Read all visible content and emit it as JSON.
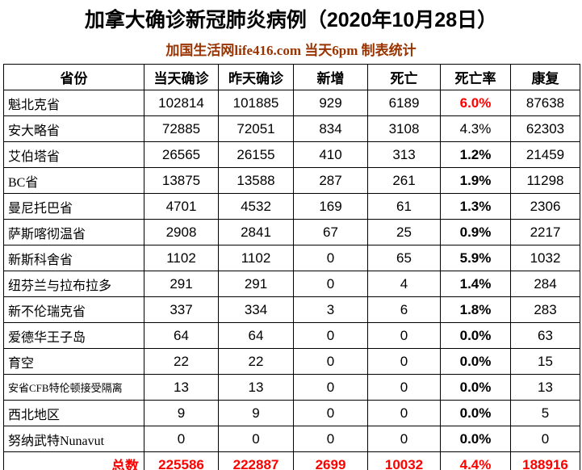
{
  "title": "加拿大确诊新冠肺炎病例（2020年10月28日）",
  "subtitle": "加国生活网life416.com 当天6pm 制表统计",
  "colors": {
    "accent_red": "#FF0000",
    "subtitle_brown": "#993300",
    "border_black": "#000000",
    "background": "#FFFFFF"
  },
  "table": {
    "headers": [
      "省份",
      "当天确诊",
      "昨天确诊",
      "新增",
      "死亡",
      "死亡率",
      "康复"
    ],
    "rows": [
      {
        "province": "魁北克省",
        "today": "102814",
        "yesterday": "101885",
        "new": "929",
        "deaths": "6189",
        "death_rate": "6.0%",
        "recovered": "87638",
        "rate_style": "red-bold",
        "small_label": false
      },
      {
        "province": "安大略省",
        "today": "72885",
        "yesterday": "72051",
        "new": "834",
        "deaths": "3108",
        "death_rate": "4.3%",
        "recovered": "62303",
        "rate_style": "normal",
        "small_label": false
      },
      {
        "province": "艾伯塔省",
        "today": "26565",
        "yesterday": "26155",
        "new": "410",
        "deaths": "313",
        "death_rate": "1.2%",
        "recovered": "21459",
        "rate_style": "bold",
        "small_label": false
      },
      {
        "province": "BC省",
        "today": "13875",
        "yesterday": "13588",
        "new": "287",
        "deaths": "261",
        "death_rate": "1.9%",
        "recovered": "11298",
        "rate_style": "bold",
        "small_label": false
      },
      {
        "province": "曼尼托巴省",
        "today": "4701",
        "yesterday": "4532",
        "new": "169",
        "deaths": "61",
        "death_rate": "1.3%",
        "recovered": "2306",
        "rate_style": "bold",
        "small_label": false
      },
      {
        "province": "萨斯喀彻温省",
        "today": "2908",
        "yesterday": "2841",
        "new": "67",
        "deaths": "25",
        "death_rate": "0.9%",
        "recovered": "2217",
        "rate_style": "bold",
        "small_label": false
      },
      {
        "province": "新斯科舍省",
        "today": "1102",
        "yesterday": "1102",
        "new": "0",
        "deaths": "65",
        "death_rate": "5.9%",
        "recovered": "1032",
        "rate_style": "bold",
        "small_label": false
      },
      {
        "province": "纽芬兰与拉布拉多",
        "today": "291",
        "yesterday": "291",
        "new": "0",
        "deaths": "4",
        "death_rate": "1.4%",
        "recovered": "284",
        "rate_style": "bold",
        "small_label": false
      },
      {
        "province": "新不伦瑞克省",
        "today": "337",
        "yesterday": "334",
        "new": "3",
        "deaths": "6",
        "death_rate": "1.8%",
        "recovered": "283",
        "rate_style": "bold",
        "small_label": false
      },
      {
        "province": "爱德华王子岛",
        "today": "64",
        "yesterday": "64",
        "new": "0",
        "deaths": "0",
        "death_rate": "0.0%",
        "recovered": "63",
        "rate_style": "bold",
        "small_label": false
      },
      {
        "province": "育空",
        "today": "22",
        "yesterday": "22",
        "new": "0",
        "deaths": "0",
        "death_rate": "0.0%",
        "recovered": "15",
        "rate_style": "bold",
        "small_label": false
      },
      {
        "province": "安省CFB特伦顿接受隔离",
        "today": "13",
        "yesterday": "13",
        "new": "0",
        "deaths": "0",
        "death_rate": "0.0%",
        "recovered": "13",
        "rate_style": "bold",
        "small_label": true
      },
      {
        "province": "西北地区",
        "today": "9",
        "yesterday": "9",
        "new": "0",
        "deaths": "0",
        "death_rate": "0.0%",
        "recovered": "5",
        "rate_style": "bold",
        "small_label": false
      },
      {
        "province": "努纳武特Nunavut",
        "today": "0",
        "yesterday": "0",
        "new": "0",
        "deaths": "0",
        "death_rate": "0.0%",
        "recovered": "0",
        "rate_style": "bold",
        "small_label": false
      }
    ],
    "total": {
      "label": "总数",
      "today": "225586",
      "yesterday": "222887",
      "new": "2699",
      "deaths": "10032",
      "death_rate": "4.4%",
      "recovered": "188916"
    }
  },
  "chart_data": {
    "type": "table",
    "title": "加拿大确诊新冠肺炎病例（2020年10月28日）",
    "subtitle": "加国生活网life416.com 当天6pm 制表统计",
    "columns": [
      "省份",
      "当天确诊",
      "昨天确诊",
      "新增",
      "死亡",
      "死亡率",
      "康复"
    ],
    "rows": [
      [
        "魁北克省",
        102814,
        101885,
        929,
        6189,
        "6.0%",
        87638
      ],
      [
        "安大略省",
        72885,
        72051,
        834,
        3108,
        "4.3%",
        62303
      ],
      [
        "艾伯塔省",
        26565,
        26155,
        410,
        313,
        "1.2%",
        21459
      ],
      [
        "BC省",
        13875,
        13588,
        287,
        261,
        "1.9%",
        11298
      ],
      [
        "曼尼托巴省",
        4701,
        4532,
        169,
        61,
        "1.3%",
        2306
      ],
      [
        "萨斯喀彻温省",
        2908,
        2841,
        67,
        25,
        "0.9%",
        2217
      ],
      [
        "新斯科舍省",
        1102,
        1102,
        0,
        65,
        "5.9%",
        1032
      ],
      [
        "纽芬兰与拉布拉多",
        291,
        291,
        0,
        4,
        "1.4%",
        284
      ],
      [
        "新不伦瑞克省",
        337,
        334,
        3,
        6,
        "1.8%",
        283
      ],
      [
        "爱德华王子岛",
        64,
        64,
        0,
        0,
        "0.0%",
        63
      ],
      [
        "育空",
        22,
        22,
        0,
        0,
        "0.0%",
        15
      ],
      [
        "安省CFB特伦顿接受隔离",
        13,
        13,
        0,
        0,
        "0.0%",
        13
      ],
      [
        "西北地区",
        9,
        9,
        0,
        0,
        "0.0%",
        5
      ],
      [
        "努纳武特Nunavut",
        0,
        0,
        0,
        0,
        "0.0%",
        0
      ],
      [
        "总数",
        225586,
        222887,
        2699,
        10032,
        "4.4%",
        188916
      ]
    ]
  }
}
